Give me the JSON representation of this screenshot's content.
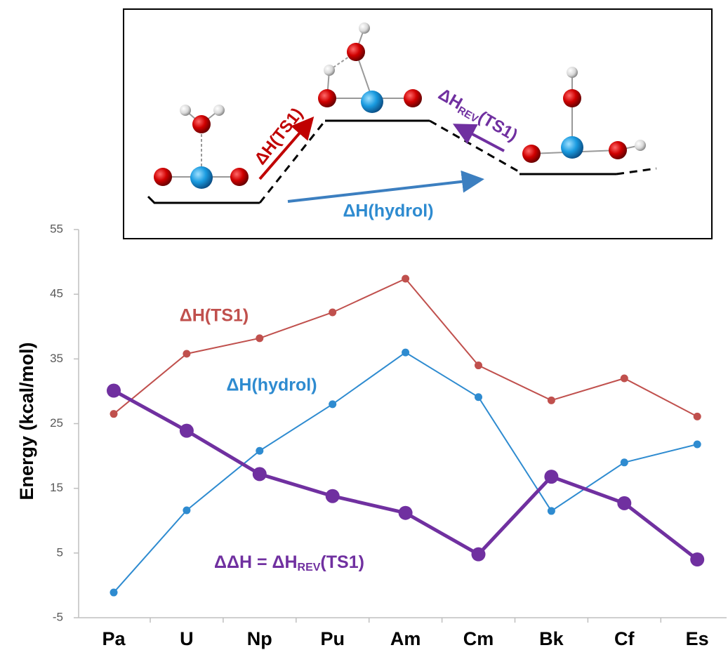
{
  "chart_data": {
    "type": "line",
    "y_label": "Energy (kcal/mol)",
    "categories": [
      "Pa",
      "U",
      "Np",
      "Pu",
      "Am",
      "Cm",
      "Bk",
      "Cf",
      "Es"
    ],
    "ylim": [
      -5,
      55
    ],
    "yticks": [
      -5,
      5,
      15,
      25,
      35,
      45,
      55
    ],
    "series": [
      {
        "name": "ΔH(TS1)",
        "color": "#c0504d",
        "values": [
          26.5,
          35.8,
          38.2,
          42.2,
          47.4,
          34.0,
          28.6,
          32.0,
          26.1
        ]
      },
      {
        "name": "ΔH(hydrol)",
        "color": "#2e8bd0",
        "values": [
          -1.1,
          11.6,
          20.8,
          28.0,
          36.0,
          29.1,
          11.5,
          19.0,
          21.8
        ]
      },
      {
        "name_parts": [
          "ΔΔH = ΔH",
          "REV",
          "(TS1)"
        ],
        "color": "#7030a0",
        "values": [
          30.1,
          23.9,
          17.2,
          13.8,
          11.2,
          4.8,
          16.8,
          12.7,
          4.0
        ]
      }
    ],
    "inset": {
      "ts1_label": "ΔH(TS1)",
      "rev_label_parts": [
        "ΔH",
        "REV",
        "(TS1)"
      ],
      "hydrol_label": "ΔH(hydrol)"
    }
  }
}
